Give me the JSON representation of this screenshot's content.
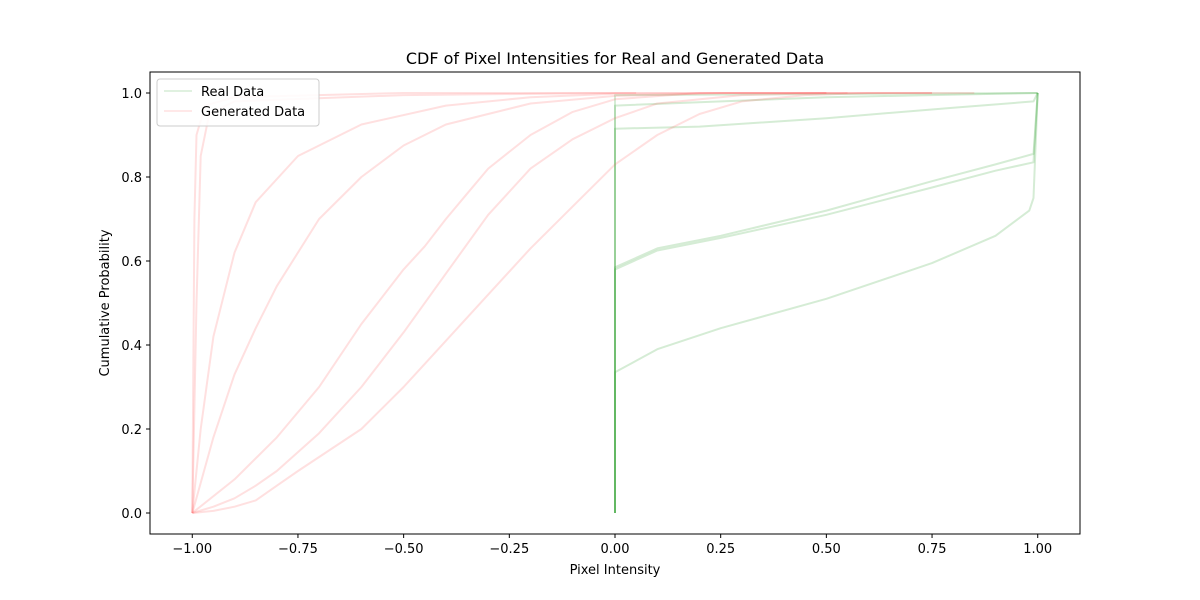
{
  "chart_data": {
    "type": "line",
    "title": "CDF of Pixel Intensities for Real and Generated Data",
    "xlabel": "Pixel Intensity",
    "ylabel": "Cumulative Probability",
    "xlim": [
      -1.1,
      1.1
    ],
    "ylim": [
      -0.05,
      1.05
    ],
    "xticks": [
      -1.0,
      -0.75,
      -0.5,
      -0.25,
      0.0,
      0.25,
      0.5,
      0.75,
      1.0
    ],
    "xtick_labels": [
      "−1.00",
      "−0.75",
      "−0.50",
      "−0.25",
      "0.00",
      "0.25",
      "0.50",
      "0.75",
      "1.00"
    ],
    "yticks": [
      0.0,
      0.2,
      0.4,
      0.6,
      0.8,
      1.0
    ],
    "ytick_labels": [
      "0.0",
      "0.2",
      "0.4",
      "0.6",
      "0.8",
      "1.0"
    ],
    "grid": false,
    "legend_position": "top-left",
    "legend": [
      {
        "label": "Real Data",
        "color": "#2ca02c"
      },
      {
        "label": "Generated Data",
        "color": "#ff6666"
      }
    ],
    "series": [
      {
        "group": "real",
        "color": "#2ca02c",
        "points": [
          [
            0,
            0
          ],
          [
            0,
            0.915
          ],
          [
            0.2,
            0.92
          ],
          [
            0.5,
            0.94
          ],
          [
            0.8,
            0.965
          ],
          [
            0.99,
            0.98
          ],
          [
            1,
            1
          ]
        ]
      },
      {
        "group": "real",
        "color": "#2ca02c",
        "points": [
          [
            0,
            0
          ],
          [
            0,
            0.585
          ],
          [
            0.1,
            0.63
          ],
          [
            0.25,
            0.66
          ],
          [
            0.5,
            0.72
          ],
          [
            0.75,
            0.79
          ],
          [
            0.9,
            0.83
          ],
          [
            0.99,
            0.855
          ],
          [
            1,
            1
          ]
        ]
      },
      {
        "group": "real",
        "color": "#2ca02c",
        "points": [
          [
            0,
            0
          ],
          [
            0,
            0.58
          ],
          [
            0.1,
            0.625
          ],
          [
            0.25,
            0.655
          ],
          [
            0.5,
            0.71
          ],
          [
            0.75,
            0.775
          ],
          [
            0.9,
            0.815
          ],
          [
            0.99,
            0.835
          ],
          [
            1,
            1
          ]
        ]
      },
      {
        "group": "real",
        "color": "#2ca02c",
        "points": [
          [
            0,
            0
          ],
          [
            0,
            0.335
          ],
          [
            0.1,
            0.39
          ],
          [
            0.25,
            0.44
          ],
          [
            0.5,
            0.51
          ],
          [
            0.75,
            0.595
          ],
          [
            0.9,
            0.66
          ],
          [
            0.98,
            0.72
          ],
          [
            0.99,
            0.75
          ],
          [
            1,
            1
          ]
        ]
      },
      {
        "group": "real",
        "color": "#2ca02c",
        "points": [
          [
            0,
            0
          ],
          [
            0,
            0.97
          ],
          [
            0.5,
            0.99
          ],
          [
            1,
            1
          ]
        ]
      },
      {
        "group": "real",
        "color": "#2ca02c",
        "points": [
          [
            0,
            0
          ],
          [
            0,
            0.995
          ],
          [
            1,
            1
          ]
        ]
      },
      {
        "group": "generated",
        "color": "#ff6666",
        "points": [
          [
            -1,
            0
          ],
          [
            -0.99,
            0.5
          ],
          [
            -0.98,
            0.85
          ],
          [
            -0.96,
            0.95
          ],
          [
            -0.9,
            0.98
          ],
          [
            -0.5,
            0.995
          ],
          [
            0.0,
            1.0
          ],
          [
            0.05,
            1.0
          ]
        ]
      },
      {
        "group": "generated",
        "color": "#ff6666",
        "points": [
          [
            -1,
            0
          ],
          [
            -0.995,
            0.7
          ],
          [
            -0.99,
            0.9
          ],
          [
            -0.97,
            0.97
          ],
          [
            -0.9,
            0.99
          ],
          [
            -0.5,
            1.0
          ],
          [
            0.85,
            1.0
          ]
        ]
      },
      {
        "group": "generated",
        "color": "#ff6666",
        "points": [
          [
            -1,
            0
          ],
          [
            -0.98,
            0.2
          ],
          [
            -0.95,
            0.42
          ],
          [
            -0.9,
            0.62
          ],
          [
            -0.85,
            0.74
          ],
          [
            -0.75,
            0.85
          ],
          [
            -0.6,
            0.925
          ],
          [
            -0.4,
            0.97
          ],
          [
            -0.2,
            0.99
          ],
          [
            0.0,
            0.998
          ],
          [
            0.3,
            1.0
          ],
          [
            0.75,
            1.0
          ]
        ]
      },
      {
        "group": "generated",
        "color": "#ff6666",
        "points": [
          [
            -1,
            0
          ],
          [
            -0.95,
            0.18
          ],
          [
            -0.9,
            0.33
          ],
          [
            -0.85,
            0.44
          ],
          [
            -0.8,
            0.54
          ],
          [
            -0.7,
            0.7
          ],
          [
            -0.6,
            0.8
          ],
          [
            -0.5,
            0.875
          ],
          [
            -0.4,
            0.925
          ],
          [
            -0.2,
            0.975
          ],
          [
            0.0,
            0.993
          ],
          [
            0.25,
            1.0
          ],
          [
            0.55,
            1.0
          ]
        ]
      },
      {
        "group": "generated",
        "color": "#ff6666",
        "points": [
          [
            -1,
            0
          ],
          [
            -0.9,
            0.08
          ],
          [
            -0.8,
            0.18
          ],
          [
            -0.7,
            0.3
          ],
          [
            -0.6,
            0.45
          ],
          [
            -0.5,
            0.58
          ],
          [
            -0.45,
            0.635
          ],
          [
            -0.4,
            0.7
          ],
          [
            -0.35,
            0.76
          ],
          [
            -0.3,
            0.82
          ],
          [
            -0.2,
            0.9
          ],
          [
            -0.1,
            0.955
          ],
          [
            0.0,
            0.985
          ],
          [
            0.2,
            1.0
          ],
          [
            0.5,
            1.0
          ]
        ]
      },
      {
        "group": "generated",
        "color": "#ff6666",
        "points": [
          [
            -1,
            0
          ],
          [
            -0.95,
            0.015
          ],
          [
            -0.9,
            0.035
          ],
          [
            -0.85,
            0.065
          ],
          [
            -0.8,
            0.1
          ],
          [
            -0.7,
            0.19
          ],
          [
            -0.6,
            0.3
          ],
          [
            -0.5,
            0.43
          ],
          [
            -0.4,
            0.57
          ],
          [
            -0.3,
            0.71
          ],
          [
            -0.2,
            0.82
          ],
          [
            -0.1,
            0.89
          ],
          [
            0.0,
            0.94
          ],
          [
            0.1,
            0.975
          ],
          [
            0.3,
            0.995
          ],
          [
            0.5,
            1.0
          ]
        ]
      },
      {
        "group": "generated",
        "color": "#ff6666",
        "points": [
          [
            -1,
            0
          ],
          [
            -0.95,
            0.005
          ],
          [
            -0.9,
            0.015
          ],
          [
            -0.85,
            0.03
          ],
          [
            -0.8,
            0.065
          ],
          [
            -0.75,
            0.1
          ],
          [
            -0.6,
            0.2
          ],
          [
            -0.5,
            0.3
          ],
          [
            -0.4,
            0.41
          ],
          [
            -0.3,
            0.52
          ],
          [
            -0.2,
            0.63
          ],
          [
            -0.1,
            0.73
          ],
          [
            0.0,
            0.83
          ],
          [
            0.1,
            0.9
          ],
          [
            0.2,
            0.95
          ],
          [
            0.3,
            0.98
          ],
          [
            0.45,
            0.995
          ],
          [
            0.6,
            1.0
          ],
          [
            0.75,
            1.0
          ]
        ]
      }
    ]
  }
}
